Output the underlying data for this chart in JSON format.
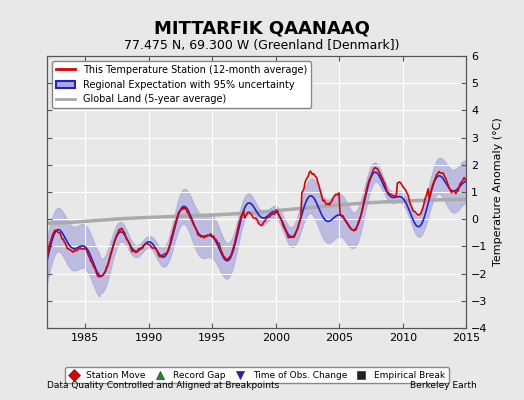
{
  "title": "MITTARFIK QAANAAQ",
  "subtitle": "77.475 N, 69.300 W (Greenland [Denmark])",
  "ylabel": "Temperature Anomaly (°C)",
  "xlabel_left": "Data Quality Controlled and Aligned at Breakpoints",
  "xlabel_right": "Berkeley Earth",
  "xlim": [
    1982,
    2015
  ],
  "ylim": [
    -4,
    6
  ],
  "yticks": [
    -4,
    -3,
    -2,
    -1,
    0,
    1,
    2,
    3,
    4,
    5,
    6
  ],
  "xticks": [
    1985,
    1990,
    1995,
    2000,
    2005,
    2010,
    2015
  ],
  "bg_color": "#e8e8e8",
  "plot_bg_color": "#e8e8e8",
  "grid_color": "#ffffff",
  "red_color": "#dd0000",
  "blue_color": "#2222cc",
  "blue_fill_color": "#aaaadd",
  "gray_color": "#aaaaaa",
  "legend_items": [
    {
      "label": "This Temperature Station (12-month average)",
      "color": "#dd0000",
      "lw": 2
    },
    {
      "label": "Regional Expectation with 95% uncertainty",
      "color": "#2222cc",
      "lw": 2
    },
    {
      "label": "Global Land (5-year average)",
      "color": "#aaaaaa",
      "lw": 2
    }
  ],
  "bottom_legend_items": [
    {
      "label": "Station Move",
      "color": "#dd0000",
      "marker": "D"
    },
    {
      "label": "Record Gap",
      "color": "#228822",
      "marker": "^"
    },
    {
      "label": "Time of Obs. Change",
      "color": "#2222cc",
      "marker": "v"
    },
    {
      "label": "Empirical Break",
      "color": "#222222",
      "marker": "s"
    }
  ]
}
